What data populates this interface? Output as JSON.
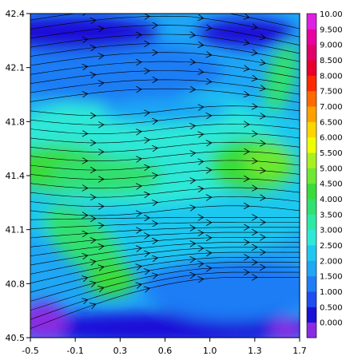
{
  "chart_data": {
    "type": "heatmap",
    "subtype": "filled-contour-with-streamlines",
    "x_ticks": [
      "-0.5",
      "-0.1",
      "0.3",
      "0.6",
      "1.0",
      "1.3",
      "1.7"
    ],
    "y_ticks": [
      "42.4",
      "42.1",
      "41.8",
      "41.4",
      "41.1",
      "40.8",
      "40.5"
    ],
    "xlim": [
      -0.5,
      1.7
    ],
    "ylim": [
      40.5,
      42.4
    ],
    "colorbar": {
      "placement": "right",
      "levels": [
        "0.000",
        "0.500",
        "1.000",
        "1.500",
        "2.000",
        "2.500",
        "3.000",
        "3.500",
        "4.000",
        "4.500",
        "5.000",
        "5.500",
        "6.000",
        "6.500",
        "7.000",
        "7.500",
        "8.000",
        "8.500",
        "9.000",
        "9.500",
        "10.00"
      ],
      "colors": [
        "#8a2be2",
        "#1a10d8",
        "#1f4ef0",
        "#1f7df5",
        "#1fa6f5",
        "#1fc8f0",
        "#2ee8d8",
        "#2ee8a8",
        "#30e070",
        "#3adc3a",
        "#6ee830",
        "#a8f020",
        "#eeff00",
        "#ffd400",
        "#ffa000",
        "#ff6a00",
        "#ff2a00",
        "#e8002a",
        "#e0006a",
        "#e8009e",
        "#e020e0"
      ]
    },
    "field_description_hints": {
      "core_high_wind_y": 41.4,
      "core_high_wind_value": 4.5,
      "corner_low_values_regions": [
        "top-left",
        "top-right",
        "bottom-left"
      ]
    },
    "grid": false,
    "legend": "none"
  }
}
